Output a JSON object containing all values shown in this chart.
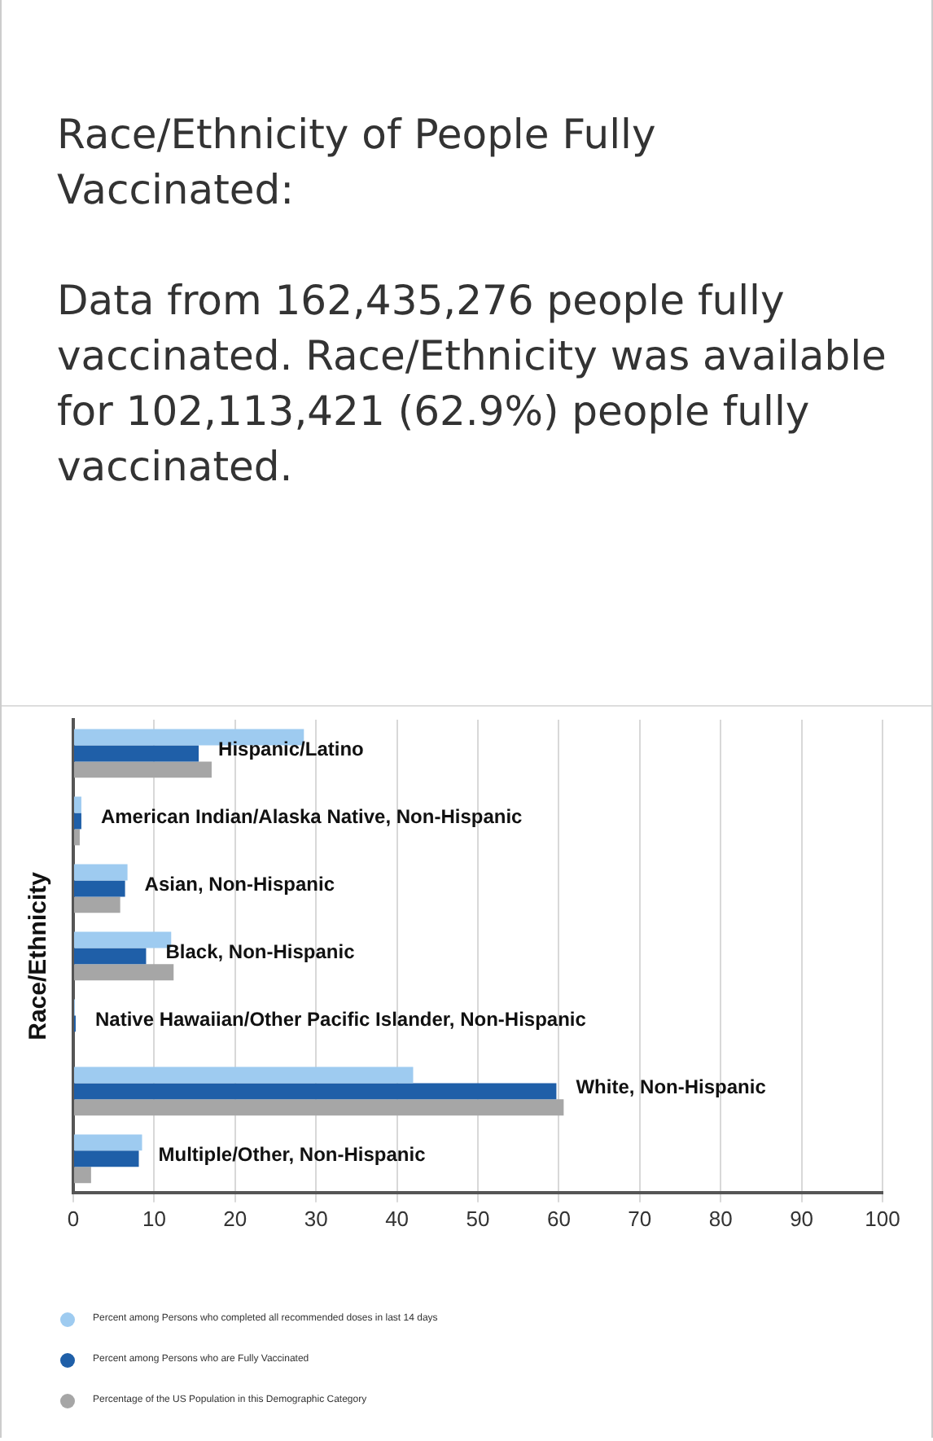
{
  "chart_data": {
    "type": "bar",
    "orientation": "horizontal",
    "title": "Race/Ethnicity of People Fully Vaccinated:",
    "subtitle": "Data from 162,435,276 people fully vaccinated. Race/Ethnicity was available for 102,113,421 (62.9%) people fully vaccinated.",
    "ylabel": "Race/Ethnicity",
    "categories": [
      "Hispanic/Latino",
      "American Indian/Alaska Native, Non-Hispanic",
      "Asian, Non-Hispanic",
      "Black, Non-Hispanic",
      "Native Hawaiian/Other Pacific Islander, Non-Hispanic",
      "White, Non-Hispanic",
      "Multiple/Other, Non-Hispanic"
    ],
    "series": [
      {
        "name": "Percent among Persons who completed all recommended doses in last 14 days",
        "color": "#9ecbf0",
        "values": [
          28.5,
          1.0,
          6.7,
          12.1,
          0.2,
          42.0,
          8.5
        ]
      },
      {
        "name": "Percent among Persons who are Fully Vaccinated",
        "color": "#1f5fa8",
        "values": [
          15.5,
          1.0,
          6.4,
          9.0,
          0.3,
          59.7,
          8.1
        ]
      },
      {
        "name": "Percentage of the US Population in this Demographic Category",
        "color": "#a6a6a6",
        "values": [
          17.1,
          0.8,
          5.8,
          12.4,
          null,
          60.6,
          2.2
        ]
      }
    ],
    "xlim": [
      0,
      100
    ],
    "xticks": [
      0,
      10,
      20,
      30,
      40,
      50,
      60,
      70,
      80,
      90,
      100
    ],
    "grid": "x",
    "legend": "bottom",
    "tick_labels": "x"
  }
}
